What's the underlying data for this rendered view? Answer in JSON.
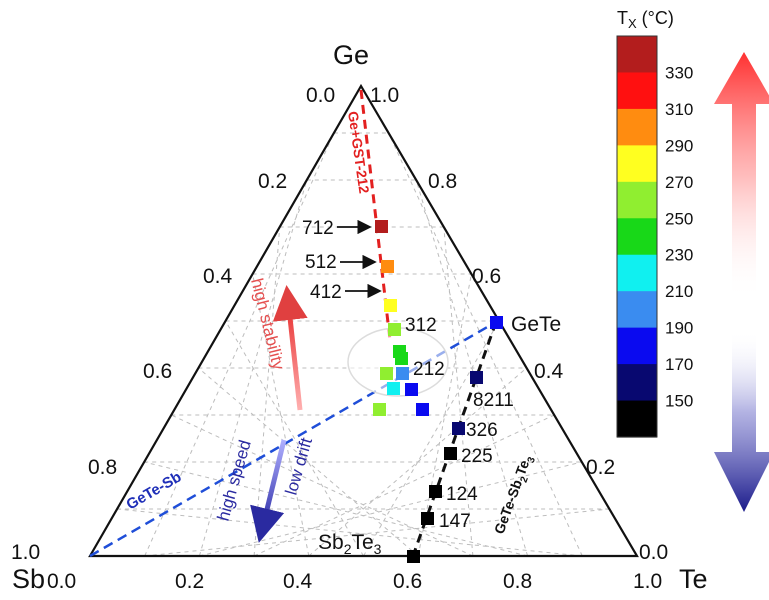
{
  "vertices": {
    "top": "Ge",
    "left": "Sb",
    "right": "Te"
  },
  "ticks": {
    "bottom": [
      "0.0",
      "0.2",
      "0.4",
      "0.6",
      "0.8",
      "1.0"
    ],
    "left": [
      "1.0",
      "0.8",
      "0.6",
      "0.4",
      "0.2",
      "0.0"
    ],
    "right": [
      "1.0",
      "0.8",
      "0.6",
      "0.4",
      "0.2",
      "0.0"
    ]
  },
  "colorbar": {
    "title": "T",
    "title_sub": "X",
    "title_unit": " (°C)",
    "labels": [
      "330",
      "310",
      "290",
      "270",
      "250",
      "230",
      "210",
      "190",
      "170",
      "150"
    ],
    "colors": [
      "#b31d1d",
      "#ff1010",
      "#ff8c10",
      "#ffff20",
      "#90ee30",
      "#18d818",
      "#10f0f0",
      "#3a8cf0",
      "#0a0af0",
      "#080870",
      "#000000"
    ]
  },
  "lines": {
    "ge_gst": "Ge+GST-212",
    "gete_sb": "GeTe-Sb",
    "gete_sb2te3_main": "GeTe-Sb",
    "gete_sb2te3_sub": "2",
    "gete_sb2te3_end": "Te",
    "gete_sb2te3_sub2": "3"
  },
  "annotations": {
    "high_stability": "high stability",
    "high_speed": "high speed",
    "low_drift": "low drift"
  },
  "labels": {
    "l712": "712",
    "l512": "512",
    "l412": "412",
    "l312": "312",
    "l212": "212",
    "l8211": "8211",
    "l326": "326",
    "l225": "225",
    "l124": "124",
    "l147": "147",
    "gete": "GeTe",
    "sb2te3_a": "Sb",
    "sb2te3_sub1": "2",
    "sb2te3_b": "Te",
    "sb2te3_sub2": "3"
  },
  "chart_data": {
    "type": "ternary-scatter",
    "axes": {
      "top": "Ge",
      "left": "Sb",
      "right": "Te"
    },
    "colorbar": {
      "label": "Tx (°C)",
      "ticks": [
        330,
        310,
        290,
        270,
        250,
        230,
        210,
        190,
        170,
        150
      ]
    },
    "points": [
      {
        "label": "712",
        "Tx": 330
      },
      {
        "label": "512",
        "Tx": 290
      },
      {
        "label": "412",
        "Tx": 270
      },
      {
        "label": "312",
        "Tx": 250
      },
      {
        "label": "212",
        "Tx": 230
      },
      {
        "label": "GeTe",
        "Tx": 170
      },
      {
        "label": "8211",
        "Tx": 170
      },
      {
        "label": "326",
        "Tx": 170
      },
      {
        "label": "225",
        "Tx": 150
      },
      {
        "label": "124",
        "Tx": 150
      },
      {
        "label": "147",
        "Tx": 150
      },
      {
        "label": "Sb2Te3",
        "Tx": 150
      }
    ]
  }
}
